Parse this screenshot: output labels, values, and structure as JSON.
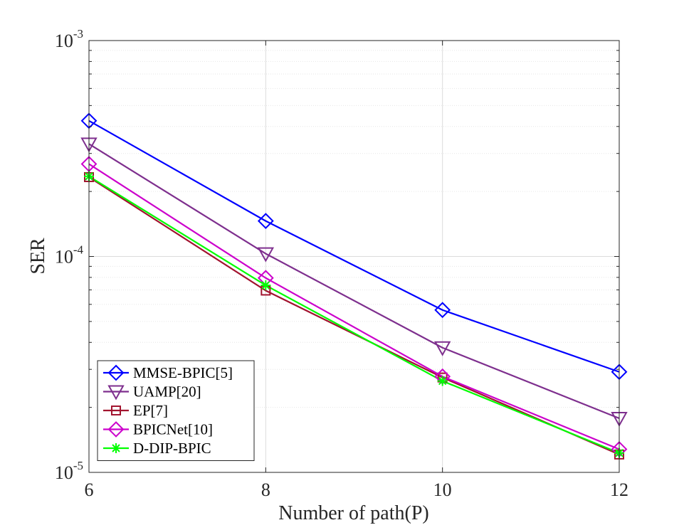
{
  "chart_data": {
    "type": "line",
    "title": "",
    "xlabel": "Number of path(P)",
    "ylabel": "SER",
    "x": [
      6,
      8,
      10,
      12
    ],
    "xlim": [
      6,
      12
    ],
    "xticks": [
      6,
      8,
      10,
      12
    ],
    "xtick_labels": [
      "6",
      "8",
      "10",
      "12"
    ],
    "yscale": "log",
    "ylim": [
      1e-05,
      0.001
    ],
    "ytick_labels": [
      {
        "base": "10",
        "exp": "-5"
      },
      {
        "base": "10",
        "exp": "-4"
      },
      {
        "base": "10",
        "exp": "-3"
      }
    ],
    "grid": true,
    "legend_position": "bottom-left",
    "series": [
      {
        "name": "MMSE-BPIC[5]",
        "color": "#0000ff",
        "marker": "diamond",
        "values": [
          0.000425,
          0.000146,
          5.65e-05,
          2.92e-05
        ]
      },
      {
        "name": "UAMP[20]",
        "color": "#7e2f8e",
        "marker": "triangle-down",
        "values": [
          0.000332,
          0.000103,
          3.78e-05,
          1.78e-05
        ]
      },
      {
        "name": "EP[7]",
        "color": "#a2142f",
        "marker": "square",
        "values": [
          0.000233,
          6.95e-05,
          2.75e-05,
          1.21e-05
        ]
      },
      {
        "name": "BPICNet[10]",
        "color": "#cc00cc",
        "marker": "diamond",
        "values": [
          0.000268,
          7.95e-05,
          2.78e-05,
          1.28e-05
        ]
      },
      {
        "name": "D-DIP-BPIC",
        "color": "#00ff00",
        "marker": "asterisk",
        "values": [
          0.000235,
          7.35e-05,
          2.65e-05,
          1.23e-05
        ]
      }
    ]
  }
}
